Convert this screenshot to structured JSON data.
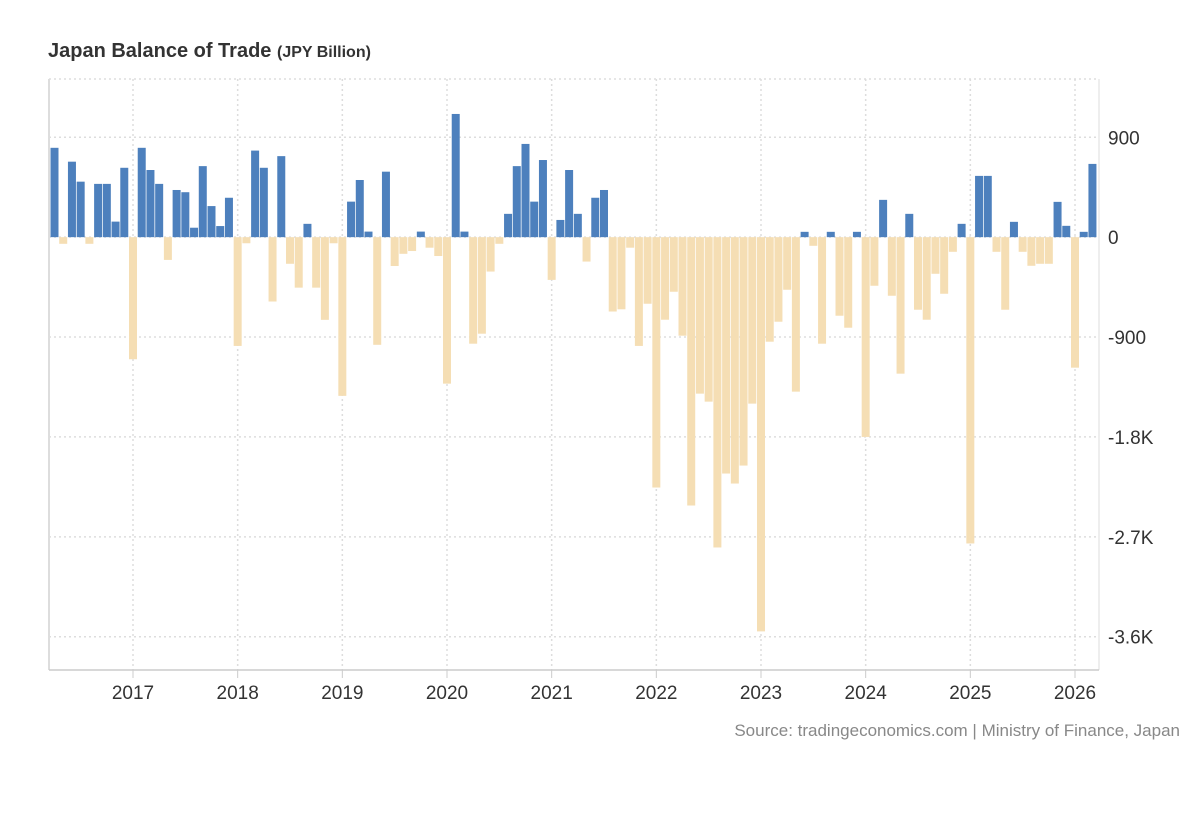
{
  "colors": {
    "positive": "#4d80bd",
    "negative": "#f5deb4",
    "grid": "#dddddd"
  },
  "chart_data": {
    "type": "bar",
    "title": "Japan Balance of Trade",
    "unit": "(JPY Billion)",
    "source": "Source: tradingeconomics.com | Ministry of Finance, Japan",
    "ylim": [
      -3900,
      1425
    ],
    "grid": true,
    "y_axis_position": "right",
    "y_ticks": [
      {
        "value": 900,
        "label": "900"
      },
      {
        "value": 0,
        "label": "0"
      },
      {
        "value": -900,
        "label": "-900"
      },
      {
        "value": -1800,
        "label": "-1.8K"
      },
      {
        "value": -2700,
        "label": "-2.7K"
      },
      {
        "value": -3600,
        "label": "-3.6K"
      }
    ],
    "x_ticks": [
      "2017",
      "2018",
      "2019",
      "2020",
      "2021",
      "2022",
      "2023",
      "2024",
      "2025",
      "2026"
    ],
    "x_start": "2016-04",
    "x_end": "2026-03",
    "values": [
      805,
      -60,
      680,
      500,
      -60,
      480,
      480,
      140,
      625,
      -1100,
      805,
      605,
      480,
      -205,
      425,
      405,
      85,
      640,
      280,
      100,
      355,
      -980,
      -55,
      780,
      625,
      -580,
      730,
      -240,
      -455,
      120,
      -455,
      -745,
      -55,
      -1430,
      320,
      515,
      50,
      -970,
      590,
      -260,
      -150,
      -125,
      50,
      -95,
      -170,
      -1320,
      1110,
      50,
      -960,
      -870,
      -310,
      -60,
      210,
      640,
      840,
      320,
      695,
      -385,
      155,
      605,
      210,
      -220,
      355,
      425,
      -670,
      -650,
      -95,
      -980,
      -600,
      -2256,
      -744,
      -492,
      -888,
      -2418,
      -1410,
      -1482,
      -2796,
      -2130,
      -2220,
      -2058,
      -1500,
      -3552,
      -942,
      -762,
      -474,
      -1392,
      48,
      -78,
      -960,
      48,
      -708,
      -816,
      48,
      -1800,
      -438,
      336,
      -528,
      -1230,
      210,
      -654,
      -744,
      -330,
      -510,
      -132,
      120,
      -2760,
      552,
      552,
      -132,
      -654,
      138,
      -132,
      -258,
      -240,
      -240,
      318,
      102,
      -1176,
      48,
      660
    ]
  }
}
